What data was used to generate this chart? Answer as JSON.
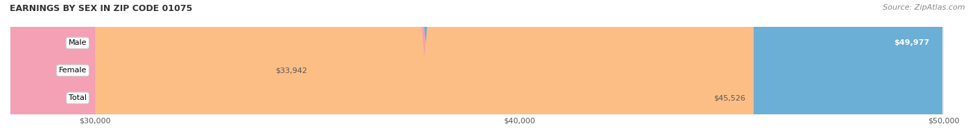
{
  "title": "EARNINGS BY SEX IN ZIP CODE 01075",
  "source": "Source: ZipAtlas.com",
  "categories": [
    "Male",
    "Female",
    "Total"
  ],
  "values": [
    49977,
    33942,
    45526
  ],
  "bar_colors": [
    "#6baed6",
    "#f4a0b5",
    "#fdbe85"
  ],
  "bar_bg_color": "#e8e8e8",
  "label_bg_color": "#ffffff",
  "x_min": 30000,
  "x_max": 50000,
  "x_ticks": [
    30000,
    40000,
    50000
  ],
  "x_tick_labels": [
    "$30,000",
    "$40,000",
    "$50,000"
  ],
  "value_labels": [
    "$49,977",
    "$33,942",
    "$45,526"
  ],
  "bar_height": 0.6,
  "fig_width": 14.06,
  "fig_height": 1.96,
  "title_fontsize": 9,
  "source_fontsize": 8,
  "bar_label_fontsize": 8,
  "tick_fontsize": 8,
  "background_color": "#ffffff"
}
